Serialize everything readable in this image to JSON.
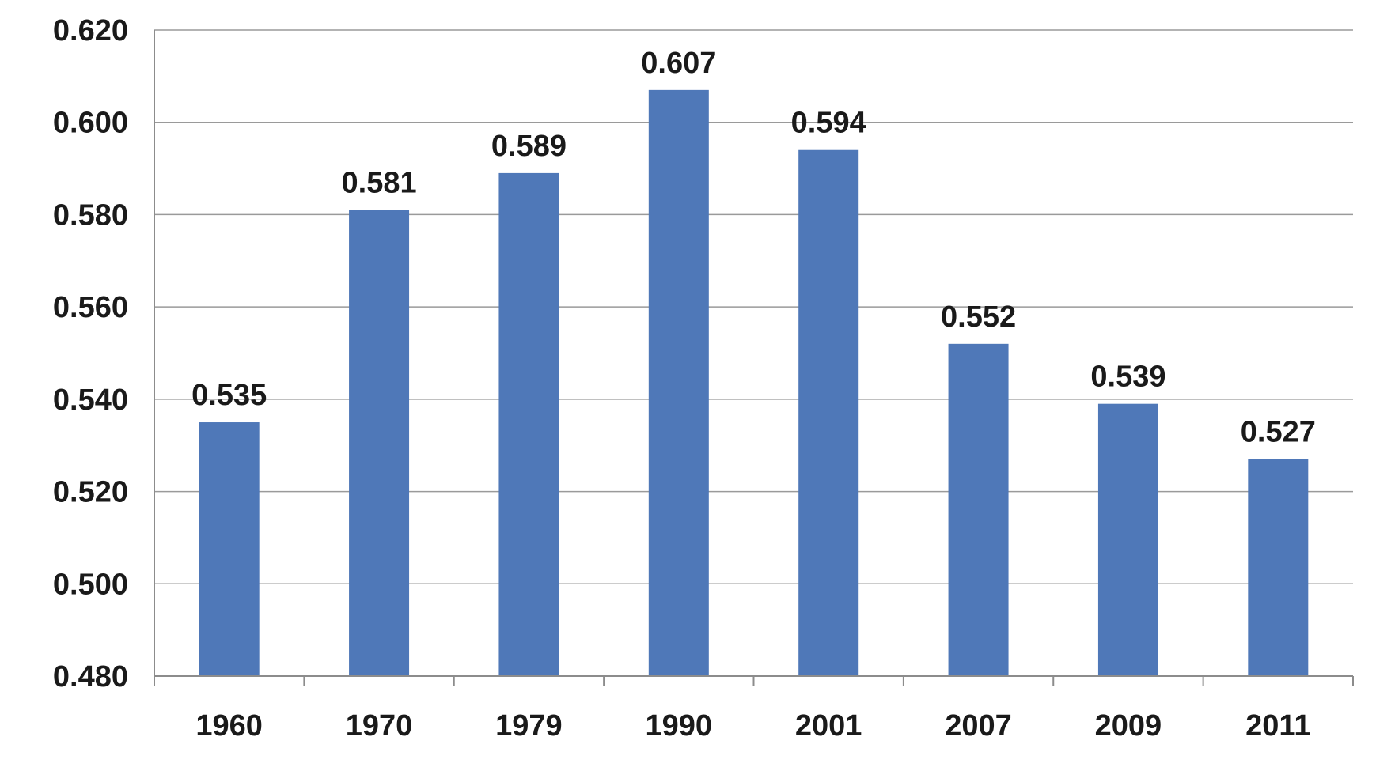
{
  "chart_data": {
    "type": "bar",
    "categories": [
      "1960",
      "1970",
      "1979",
      "1990",
      "2001",
      "2007",
      "2009",
      "2011"
    ],
    "values": [
      0.535,
      0.581,
      0.589,
      0.607,
      0.594,
      0.552,
      0.539,
      0.527
    ],
    "data_labels": [
      "0.535",
      "0.581",
      "0.589",
      "0.607",
      "0.594",
      "0.552",
      "0.539",
      "0.527"
    ],
    "y_ticks": [
      "0.480",
      "0.500",
      "0.520",
      "0.540",
      "0.560",
      "0.580",
      "0.600",
      "0.620"
    ],
    "ylim": [
      0.48,
      0.62
    ],
    "title": "",
    "xlabel": "",
    "ylabel": "",
    "grid": true,
    "legend": "none",
    "bar_color": "#4f78b8"
  }
}
